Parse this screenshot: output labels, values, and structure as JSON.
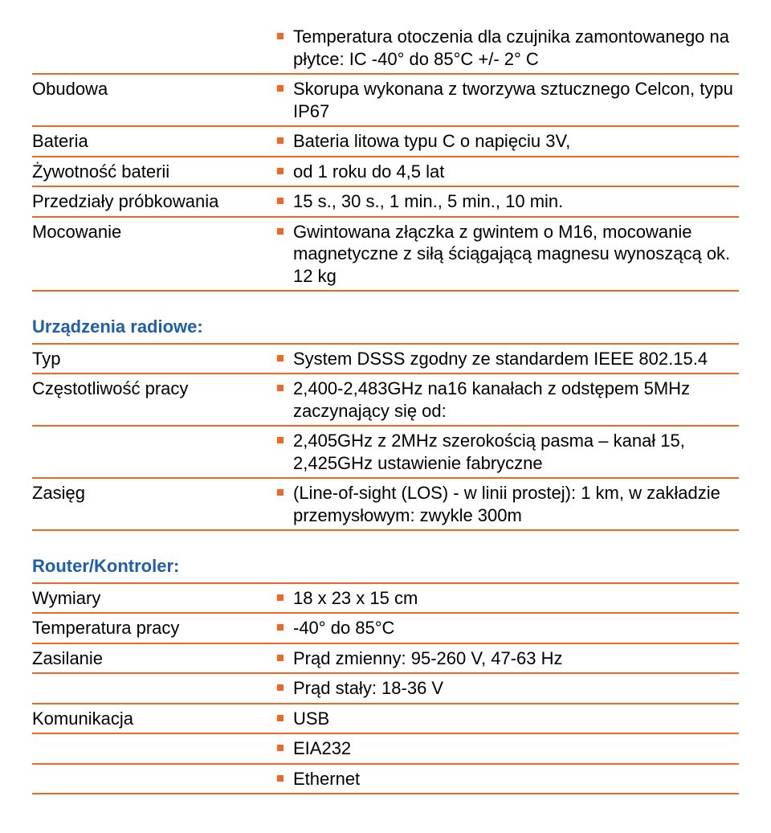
{
  "colors": {
    "divider": "#f26522",
    "bullet": "#f26522",
    "heading": "#1f5ea8",
    "text": "#000000",
    "background": "#ffffff"
  },
  "sections": [
    {
      "heading": null,
      "rows": [
        {
          "label": "",
          "values": [
            "Temperatura otoczenia dla czujnika zamontowanego na płytce: IC -40° do 85°C +/- 2° C"
          ]
        },
        {
          "label": "Obudowa",
          "values": [
            "Skorupa wykonana z tworzywa sztucznego Celcon, typu IP67"
          ]
        },
        {
          "label": "Bateria",
          "values": [
            "Bateria litowa typu C o napięciu 3V,"
          ]
        },
        {
          "label": "Żywotność baterii",
          "values": [
            "od 1 roku do 4,5 lat"
          ]
        },
        {
          "label": "Przedziały próbkowania",
          "values": [
            "15 s., 30 s., 1 min., 5 min., 10 min."
          ]
        },
        {
          "label": "Mocowanie",
          "values": [
            "Gwintowana złączka z gwintem o M16, mocowanie magnetyczne z siłą ściągającą magnesu wynoszącą ok. 12 kg"
          ]
        }
      ]
    },
    {
      "heading": "Urządzenia radiowe:",
      "rows": [
        {
          "label": "Typ",
          "values": [
            "System DSSS zgodny ze standardem IEEE 802.15.4"
          ]
        },
        {
          "label": "Częstotliwość pracy",
          "values": [
            "2,400-2,483GHz na16 kanałach z odstępem 5MHz zaczynający się od:"
          ]
        },
        {
          "label": "",
          "values": [
            "2,405GHz z 2MHz szerokością pasma – kanał 15, 2,425GHz ustawienie fabryczne"
          ]
        },
        {
          "label": "Zasięg",
          "values": [
            "(Line-of-sight (LOS) - w linii prostej): 1 km, w zakładzie przemysłowym: zwykle 300m"
          ]
        }
      ]
    },
    {
      "heading": "Router/Kontroler:",
      "rows": [
        {
          "label": "Wymiary",
          "values": [
            "18 x 23 x 15 cm"
          ]
        },
        {
          "label": "Temperatura pracy",
          "values": [
            "-40° do 85°C"
          ]
        },
        {
          "label": "Zasilanie",
          "values": [
            "Prąd zmienny: 95-260 V, 47-63 Hz",
            "Prąd stały: 18-36 V"
          ]
        },
        {
          "label": "Komunikacja",
          "values": [
            "USB",
            "EIA232",
            "Ethernet"
          ]
        }
      ]
    }
  ]
}
